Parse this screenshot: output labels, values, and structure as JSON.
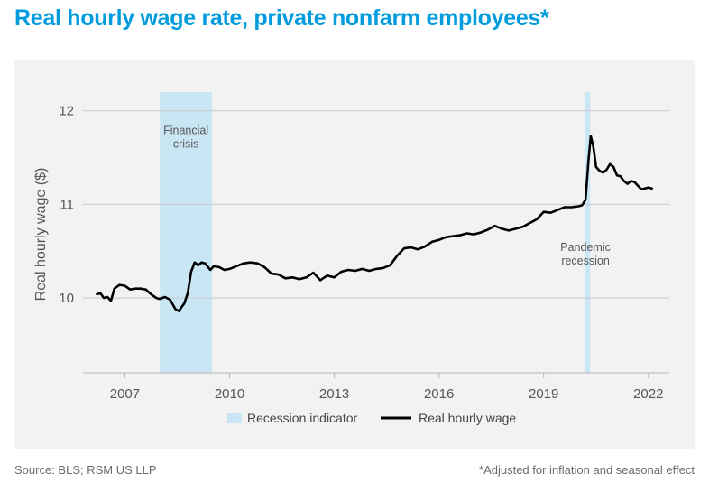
{
  "title": "Real hourly wage rate, private nonfarm employees*",
  "source": "Source: BLS; RSM US LLP",
  "footnote": "*Adjusted for inflation and seasonal effect",
  "colors": {
    "title": "#009cde",
    "line": "#000000",
    "recession": "#c9e6f5",
    "grid": "#c8c8c8",
    "panel": "#f2f2f2"
  },
  "chart_data": {
    "type": "line",
    "title": "Real hourly wage rate, private nonfarm employees*",
    "xlabel": "",
    "ylabel": "Real hourly wage ($)",
    "xlim": [
      2005.8,
      2022.6
    ],
    "ylim": [
      9.2,
      12.2
    ],
    "x_ticks": [
      2007,
      2010,
      2013,
      2016,
      2019,
      2022
    ],
    "y_ticks": [
      10,
      11,
      12
    ],
    "grid": true,
    "legend": "bottom-center",
    "legend_entries": [
      {
        "label": "Recession indicator",
        "kind": "area"
      },
      {
        "label": "Real hourly wage",
        "kind": "line"
      }
    ],
    "recessions": [
      {
        "start": 2008.0,
        "end": 2009.5,
        "label_lines": [
          "Financial",
          "crisis"
        ],
        "label_y": 11.75
      },
      {
        "start": 2020.17,
        "end": 2020.33,
        "label_lines": [
          "Pandemic",
          "recession"
        ],
        "label_y": 10.5
      }
    ],
    "series": [
      {
        "name": "Real hourly wage",
        "x": [
          2006.2,
          2006.3,
          2006.4,
          2006.5,
          2006.6,
          2006.7,
          2006.85,
          2007.0,
          2007.15,
          2007.3,
          2007.45,
          2007.6,
          2007.75,
          2007.9,
          2008.0,
          2008.15,
          2008.3,
          2008.45,
          2008.55,
          2008.62,
          2008.7,
          2008.8,
          2008.9,
          2009.0,
          2009.1,
          2009.2,
          2009.3,
          2009.45,
          2009.55,
          2009.7,
          2009.85,
          2010.0,
          2010.2,
          2010.4,
          2010.6,
          2010.8,
          2011.0,
          2011.2,
          2011.4,
          2011.6,
          2011.8,
          2012.0,
          2012.2,
          2012.4,
          2012.6,
          2012.8,
          2013.0,
          2013.2,
          2013.4,
          2013.6,
          2013.8,
          2014.0,
          2014.2,
          2014.4,
          2014.6,
          2014.8,
          2015.0,
          2015.2,
          2015.4,
          2015.6,
          2015.8,
          2016.0,
          2016.2,
          2016.4,
          2016.6,
          2016.8,
          2017.0,
          2017.2,
          2017.4,
          2017.6,
          2017.8,
          2018.0,
          2018.2,
          2018.4,
          2018.6,
          2018.8,
          2019.0,
          2019.2,
          2019.4,
          2019.6,
          2019.8,
          2020.0,
          2020.1,
          2020.2,
          2020.28,
          2020.35,
          2020.42,
          2020.5,
          2020.6,
          2020.7,
          2020.8,
          2020.9,
          2021.0,
          2021.1,
          2021.2,
          2021.3,
          2021.4,
          2021.5,
          2021.6,
          2021.7,
          2021.8,
          2021.9,
          2022.0,
          2022.1
        ],
        "values": [
          10.04,
          10.05,
          10.0,
          10.01,
          9.97,
          10.1,
          10.14,
          10.13,
          10.09,
          10.1,
          10.1,
          10.09,
          10.04,
          10.0,
          9.99,
          10.01,
          9.98,
          9.88,
          9.86,
          9.9,
          9.94,
          10.05,
          10.28,
          10.38,
          10.35,
          10.38,
          10.37,
          10.3,
          10.34,
          10.33,
          10.3,
          10.31,
          10.34,
          10.37,
          10.38,
          10.37,
          10.33,
          10.26,
          10.25,
          10.21,
          10.22,
          10.2,
          10.22,
          10.27,
          10.19,
          10.24,
          10.22,
          10.28,
          10.3,
          10.29,
          10.31,
          10.29,
          10.31,
          10.32,
          10.35,
          10.45,
          10.53,
          10.54,
          10.52,
          10.55,
          10.6,
          10.62,
          10.65,
          10.66,
          10.67,
          10.69,
          10.68,
          10.7,
          10.73,
          10.77,
          10.74,
          10.72,
          10.74,
          10.76,
          10.8,
          10.84,
          10.92,
          10.91,
          10.94,
          10.97,
          10.97,
          10.98,
          10.99,
          11.05,
          11.45,
          11.73,
          11.62,
          11.4,
          11.36,
          11.34,
          11.37,
          11.43,
          11.4,
          11.31,
          11.3,
          11.25,
          11.22,
          11.25,
          11.24,
          11.2,
          11.16,
          11.17,
          11.18,
          11.17
        ]
      }
    ]
  }
}
